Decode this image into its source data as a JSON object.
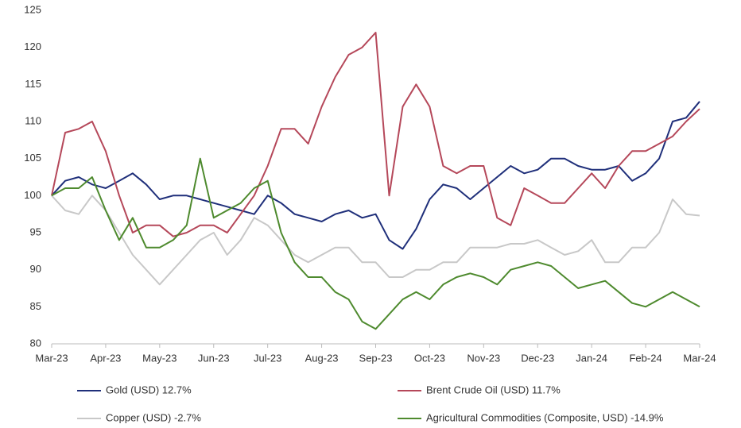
{
  "chart_data": {
    "type": "line",
    "x": [
      0,
      0.25,
      0.5,
      0.75,
      1,
      1.25,
      1.5,
      1.75,
      2,
      2.25,
      2.5,
      2.75,
      3,
      3.25,
      3.5,
      3.75,
      4,
      4.25,
      4.5,
      4.75,
      5,
      5.25,
      5.5,
      5.75,
      6,
      6.25,
      6.5,
      6.75,
      7,
      7.25,
      7.5,
      7.75,
      8,
      8.25,
      8.5,
      8.75,
      9,
      9.25,
      9.5,
      9.75,
      10,
      10.25,
      10.5,
      10.75,
      11,
      11.25,
      11.5,
      11.75,
      12
    ],
    "xlim": [
      0,
      12
    ],
    "xticks": [
      {
        "value": 0,
        "label": "Mar-23"
      },
      {
        "value": 1,
        "label": "Apr-23"
      },
      {
        "value": 2,
        "label": "May-23"
      },
      {
        "value": 3,
        "label": "Jun-23"
      },
      {
        "value": 4,
        "label": "Jul-23"
      },
      {
        "value": 5,
        "label": "Aug-23"
      },
      {
        "value": 6,
        "label": "Sep-23"
      },
      {
        "value": 7,
        "label": "Oct-23"
      },
      {
        "value": 8,
        "label": "Nov-23"
      },
      {
        "value": 9,
        "label": "Dec-23"
      },
      {
        "value": 10,
        "label": "Jan-24"
      },
      {
        "value": 11,
        "label": "Feb-24"
      },
      {
        "value": 12,
        "label": "Mar-24"
      }
    ],
    "ylim": [
      80,
      125
    ],
    "yticks": [
      80,
      85,
      90,
      95,
      100,
      105,
      110,
      115,
      120,
      125
    ],
    "grid": false,
    "legend": "bottom",
    "series": [
      {
        "name": "Gold (USD) 12.7%",
        "color": "#1f2f7a",
        "values": [
          100,
          102,
          102.5,
          101.5,
          101,
          102,
          103,
          101.5,
          99.5,
          100,
          100,
          99.5,
          99,
          98.5,
          98,
          97.5,
          100,
          99,
          97.5,
          97,
          96.5,
          97.5,
          98,
          97,
          97.5,
          94,
          92.8,
          95.5,
          99.5,
          101.5,
          101,
          99.5,
          101,
          102.5,
          104,
          103,
          103.5,
          105,
          105,
          104,
          103.5,
          103.5,
          104,
          102,
          103,
          105,
          110,
          110.5,
          112.7
        ]
      },
      {
        "name": "Brent Crude Oil (USD) 11.7%",
        "color": "#b5485a",
        "values": [
          100,
          108.5,
          109,
          110,
          106,
          100,
          95,
          96,
          96,
          94.5,
          95,
          96,
          96,
          95,
          97.5,
          100,
          104,
          109,
          109,
          107,
          112,
          116,
          119,
          120,
          122,
          100,
          112,
          115,
          112,
          104,
          103,
          104,
          104,
          97,
          96,
          101,
          100,
          99,
          99,
          101,
          103,
          101,
          104,
          106,
          106,
          107,
          108,
          110,
          111.7
        ]
      },
      {
        "name": "Copper (USD) -2.7%",
        "color": "#c8c8c8",
        "values": [
          100,
          98,
          97.5,
          100,
          98,
          95,
          92,
          90,
          88,
          90,
          92,
          94,
          95,
          92,
          94,
          97,
          96,
          94,
          92,
          91,
          92,
          93,
          93,
          91,
          91,
          89,
          89,
          90,
          90,
          91,
          91,
          93,
          93,
          93,
          93.5,
          93.5,
          94,
          93,
          92,
          92.5,
          94,
          91,
          91,
          93,
          93,
          95,
          99.5,
          97.5,
          97.3
        ]
      },
      {
        "name": "Agricultural Commodities (Composite, USD) -14.9%",
        "color": "#4e8a2e",
        "values": [
          100,
          101,
          101,
          102.5,
          98,
          94,
          97,
          93,
          93,
          94,
          96,
          105,
          97,
          98,
          99,
          101,
          102,
          95,
          91,
          89,
          89,
          87,
          86,
          83,
          82,
          84,
          86,
          87,
          86,
          88,
          89,
          89.5,
          89,
          88,
          90,
          90.5,
          91,
          90.5,
          89,
          87.5,
          88,
          88.5,
          87,
          85.5,
          85,
          86,
          87,
          86,
          85
        ]
      }
    ]
  }
}
